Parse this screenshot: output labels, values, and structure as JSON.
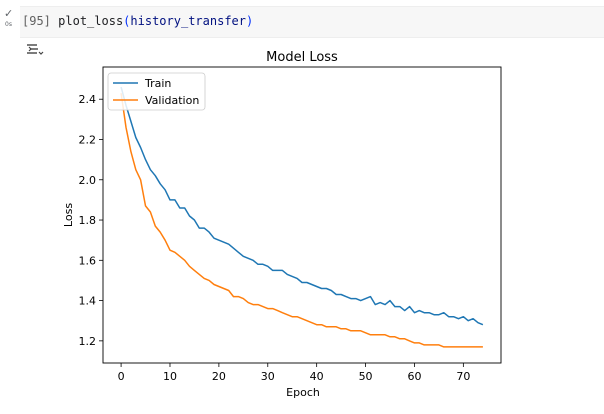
{
  "cell": {
    "prompt": "[95]",
    "code_fn": "plot_loss",
    "code_open": "(",
    "code_arg": "history_transfer",
    "code_close": ")",
    "exec_time": "0s",
    "status_icon": "check-icon"
  },
  "output": {
    "toggle_icon": "output-toggle-icon"
  },
  "chart_data": {
    "type": "line",
    "title": "Model Loss",
    "xlabel": "Epoch",
    "ylabel": "Loss",
    "xlim": [
      -3.7,
      77.7
    ],
    "ylim": [
      1.09,
      2.56
    ],
    "xticks": [
      0,
      10,
      20,
      30,
      40,
      50,
      60,
      70
    ],
    "yticks": [
      1.2,
      1.4,
      1.6,
      1.8,
      2.0,
      2.2,
      2.4
    ],
    "ytick_labels": [
      "1.2",
      "1.4",
      "1.6",
      "1.8",
      "2.0",
      "2.2",
      "2.4"
    ],
    "grid": false,
    "legend_position": "upper-left",
    "series": [
      {
        "name": "Train",
        "color": "#1f77b4",
        "x": [
          0,
          1,
          2,
          3,
          4,
          5,
          6,
          7,
          8,
          9,
          10,
          11,
          12,
          13,
          14,
          15,
          16,
          17,
          18,
          19,
          20,
          21,
          22,
          23,
          24,
          25,
          26,
          27,
          28,
          29,
          30,
          31,
          32,
          33,
          34,
          35,
          36,
          37,
          38,
          39,
          40,
          41,
          42,
          43,
          44,
          45,
          46,
          47,
          48,
          49,
          50,
          51,
          52,
          53,
          54,
          55,
          56,
          57,
          58,
          59,
          60,
          61,
          62,
          63,
          64,
          65,
          66,
          67,
          68,
          69,
          70,
          71,
          72,
          73,
          74
        ],
        "y": [
          2.46,
          2.37,
          2.29,
          2.21,
          2.16,
          2.1,
          2.05,
          2.02,
          1.98,
          1.95,
          1.9,
          1.9,
          1.86,
          1.86,
          1.82,
          1.8,
          1.76,
          1.76,
          1.74,
          1.71,
          1.7,
          1.69,
          1.68,
          1.66,
          1.64,
          1.62,
          1.61,
          1.6,
          1.58,
          1.58,
          1.57,
          1.55,
          1.55,
          1.55,
          1.53,
          1.52,
          1.51,
          1.49,
          1.49,
          1.48,
          1.47,
          1.46,
          1.46,
          1.45,
          1.43,
          1.43,
          1.42,
          1.41,
          1.41,
          1.4,
          1.41,
          1.42,
          1.38,
          1.39,
          1.38,
          1.4,
          1.37,
          1.37,
          1.35,
          1.37,
          1.34,
          1.35,
          1.34,
          1.34,
          1.33,
          1.33,
          1.34,
          1.32,
          1.32,
          1.31,
          1.32,
          1.3,
          1.31,
          1.29,
          1.28
        ]
      },
      {
        "name": "Validation",
        "color": "#ff7f0e",
        "x": [
          0,
          1,
          2,
          3,
          4,
          5,
          6,
          7,
          8,
          9,
          10,
          11,
          12,
          13,
          14,
          15,
          16,
          17,
          18,
          19,
          20,
          21,
          22,
          23,
          24,
          25,
          26,
          27,
          28,
          29,
          30,
          31,
          32,
          33,
          34,
          35,
          36,
          37,
          38,
          39,
          40,
          41,
          42,
          43,
          44,
          45,
          46,
          47,
          48,
          49,
          50,
          51,
          52,
          53,
          54,
          55,
          56,
          57,
          58,
          59,
          60,
          61,
          62,
          63,
          64,
          65,
          66,
          67,
          68,
          69,
          70,
          71,
          72,
          73,
          74
        ],
        "y": [
          2.43,
          2.26,
          2.14,
          2.05,
          2.0,
          1.87,
          1.84,
          1.77,
          1.74,
          1.7,
          1.65,
          1.64,
          1.62,
          1.6,
          1.57,
          1.55,
          1.53,
          1.51,
          1.5,
          1.48,
          1.47,
          1.46,
          1.45,
          1.42,
          1.42,
          1.41,
          1.39,
          1.38,
          1.38,
          1.37,
          1.36,
          1.36,
          1.35,
          1.34,
          1.33,
          1.32,
          1.32,
          1.31,
          1.3,
          1.29,
          1.28,
          1.28,
          1.27,
          1.27,
          1.27,
          1.26,
          1.26,
          1.25,
          1.25,
          1.25,
          1.24,
          1.23,
          1.23,
          1.23,
          1.23,
          1.22,
          1.22,
          1.21,
          1.21,
          1.2,
          1.19,
          1.19,
          1.18,
          1.18,
          1.18,
          1.18,
          1.17,
          1.17,
          1.17,
          1.17,
          1.17,
          1.17,
          1.17,
          1.17,
          1.17
        ]
      }
    ]
  }
}
